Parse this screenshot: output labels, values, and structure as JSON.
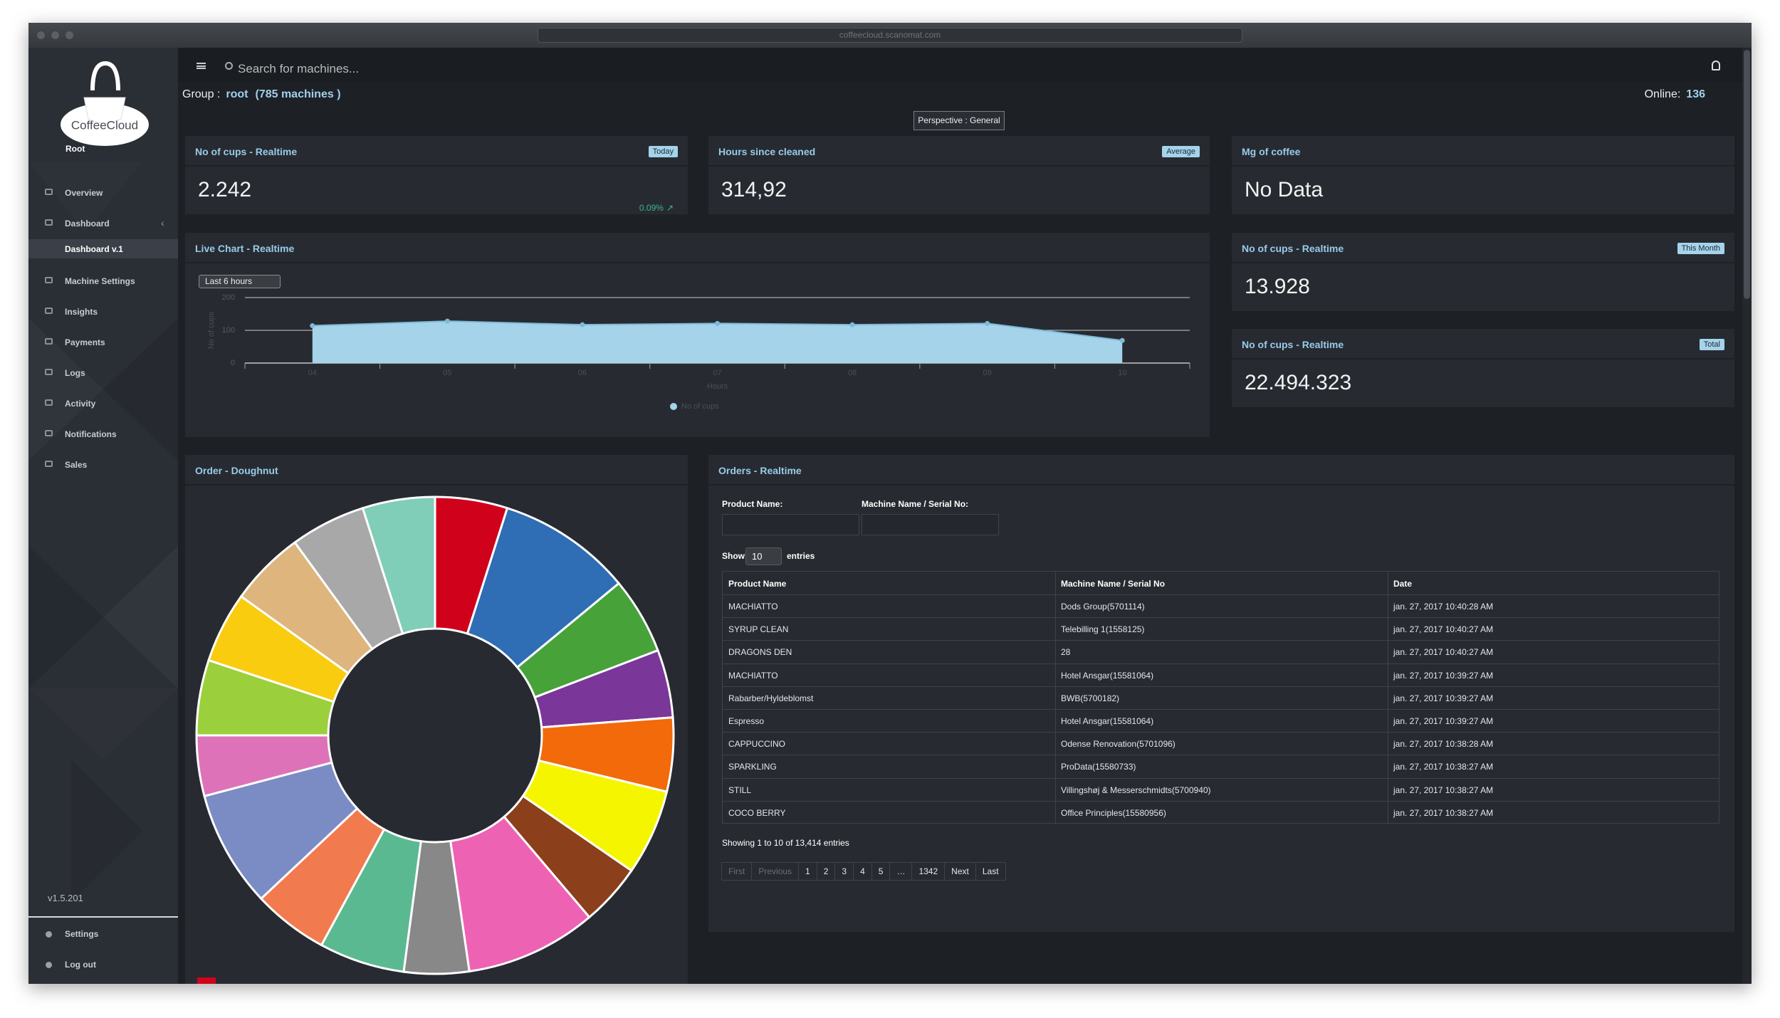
{
  "browser": {
    "url": "coffeecloud.scanomat.com"
  },
  "sidebar": {
    "brand": "CoffeeCloud",
    "user": "Root",
    "menu": [
      "Overview",
      "Dashboard",
      "Machine Settings",
      "Insights",
      "Payments",
      "Logs",
      "Activity",
      "Notifications",
      "Sales"
    ],
    "submenu": [
      "Dashboard v.1"
    ],
    "version": "v1.5.201",
    "footer": [
      "Settings",
      "Log out"
    ]
  },
  "topbar": {
    "search": "Search for machines..."
  },
  "group": {
    "label": "Group :",
    "name": "root",
    "machines": "(785 machines )",
    "online_label": "Online:",
    "online": 136
  },
  "perspective": "Perspective : General",
  "stats": [
    {
      "title": "No of cups - Realtime",
      "badge": "Today",
      "value": "2.242",
      "change": "0.09%"
    },
    {
      "title": "Hours since cleaned",
      "badge": "Average",
      "value": "314,92"
    },
    {
      "title": "Mg of coffee",
      "value": "No Data"
    },
    {
      "title": "No of cups - Realtime",
      "badge": "This Month",
      "value": "13.928"
    },
    {
      "title": "No of cups - Realtime",
      "badge": "Total",
      "value": "22.494.323"
    }
  ],
  "chart_data": [
    {
      "type": "area",
      "title": "Live Chart - Realtime",
      "range_select": "Last 6 hours",
      "x_label": "Hours",
      "y_label": "No of cups",
      "categories": [
        "04",
        "05",
        "06",
        "07",
        "08",
        "09",
        "10"
      ],
      "series": [
        {
          "name": "No of cups",
          "color": "#a5d3ea",
          "values": [
            114,
            128,
            117,
            121,
            117,
            121,
            69
          ]
        }
      ],
      "ylim": [
        0,
        200
      ],
      "yticks": [
        0,
        100,
        200
      ],
      "grid": true
    },
    {
      "type": "doughnut",
      "title": "Order - Doughnut",
      "values": [
        4.9,
        9.1,
        5.2,
        4.6,
        5.0,
        5.8,
        4.2,
        8.9,
        4.4,
        5.8,
        5.1,
        7.9,
        4.1,
        5.1,
        4.8,
        5.1,
        5.1,
        4.9
      ],
      "colors": [
        "#d0021b",
        "#2f6db5",
        "#47a23a",
        "#7b3699",
        "#f26a0a",
        "#f5f500",
        "#8b3f1a",
        "#ee62b4",
        "#888888",
        "#5bb992",
        "#f27a4f",
        "#7b8cc4",
        "#de72b8",
        "#9ccf3c",
        "#f9cc10",
        "#ddb57d",
        "#a8a8a8",
        "#80cdb8"
      ]
    }
  ],
  "orders": {
    "title": "Orders - Realtime",
    "filters": [
      "Product Name:",
      "Machine Name / Serial No:"
    ],
    "show": "Show",
    "page_size": 10,
    "entries": "entries",
    "columns": [
      "Product Name",
      "Machine Name / Serial No",
      "Date"
    ],
    "rows": [
      [
        "MACHIATTO",
        "Dods Group(5701114)",
        "jan. 27, 2017 10:40:28 AM"
      ],
      [
        "SYRUP CLEAN",
        "Telebilling 1(1558125)",
        "jan. 27, 2017 10:40:27 AM"
      ],
      [
        "DRAGONS DEN",
        "28",
        "jan. 27, 2017 10:40:27 AM"
      ],
      [
        "MACHIATTO",
        "Hotel Ansgar(15581064)",
        "jan. 27, 2017 10:39:27 AM"
      ],
      [
        "Rabarber/Hyldeblomst",
        "BWB(5700182)",
        "jan. 27, 2017 10:39:27 AM"
      ],
      [
        "Espresso",
        "Hotel Ansgar(15581064)",
        "jan. 27, 2017 10:39:27 AM"
      ],
      [
        "CAPPUCCINO",
        "Odense Renovation(5701096)",
        "jan. 27, 2017 10:38:28 AM"
      ],
      [
        "SPARKLING",
        "ProData(15580733)",
        "jan. 27, 2017 10:38:27 AM"
      ],
      [
        "STILL",
        "Villingshøj & Messerschmidts(5700940)",
        "jan. 27, 2017 10:38:27 AM"
      ],
      [
        "COCO BERRY",
        "Office Principles(15580956)",
        "jan. 27, 2017 10:38:27 AM"
      ]
    ],
    "summary": "Showing 1 to 10 of 13,414 entries",
    "pagination": [
      "First",
      "Previous",
      "1",
      "2",
      "3",
      "4",
      "5",
      "…",
      "1342",
      "Next",
      "Last"
    ]
  }
}
